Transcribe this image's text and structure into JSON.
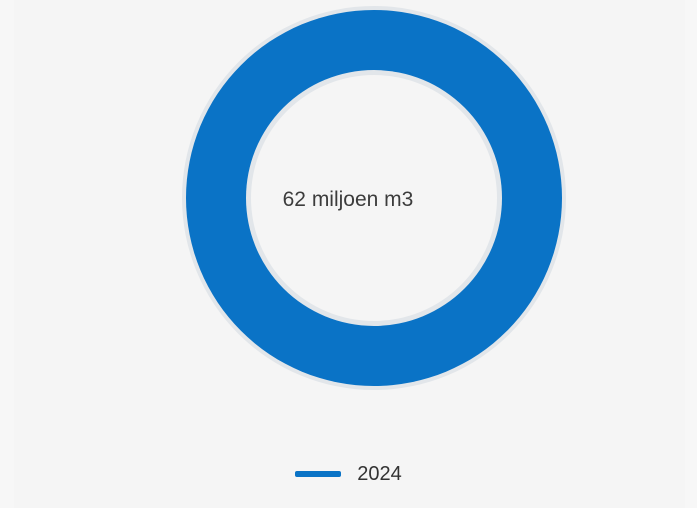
{
  "chart_data": {
    "type": "pie",
    "variant": "donut",
    "center_label": "62 miljoen m3",
    "series": [
      {
        "name": "2024",
        "values": [
          62
        ],
        "color": "#0a73c6"
      }
    ],
    "legend": {
      "placement": "bottom-center",
      "entries": [
        "2024"
      ]
    }
  },
  "colors": {
    "ring": "#0a73c6",
    "ring_outline": "#e2e6ea",
    "hole": "#f5f5f5",
    "background": "#f5f5f5"
  }
}
